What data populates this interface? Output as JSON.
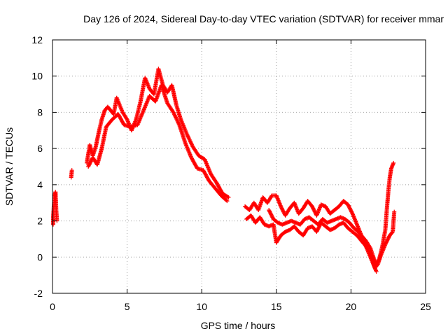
{
  "chart_data": {
    "type": "scatter",
    "title": "Day 126 of 2024, Sidereal Day-to-day VTEC variation (SDTVAR) for receiver mmar",
    "xlabel": "GPS time / hours",
    "ylabel": "SDTVAR / TECUs",
    "xlim": [
      0,
      25
    ],
    "ylim": [
      -2,
      12
    ],
    "xticks": [
      0,
      5,
      10,
      15,
      20,
      25
    ],
    "yticks": [
      -2,
      0,
      2,
      4,
      6,
      8,
      10,
      12
    ],
    "grid": true,
    "marker": "+",
    "colors": {
      "series": "#ff0000",
      "grid": "#a0a0a0",
      "axis": "#000000"
    },
    "series": [
      {
        "name": "SDTVAR",
        "segments": [
          [
            [
              0.0,
              1.8
            ],
            [
              0.05,
              2.3
            ],
            [
              0.1,
              2.9
            ],
            [
              0.15,
              3.4
            ],
            [
              0.2,
              3.6
            ],
            [
              0.25,
              2.6
            ],
            [
              0.3,
              2.0
            ]
          ],
          [
            [
              1.25,
              4.4
            ],
            [
              1.3,
              4.8
            ]
          ],
          [
            [
              2.3,
              5.2
            ],
            [
              2.5,
              6.2
            ],
            [
              2.7,
              5.6
            ],
            [
              2.9,
              6.1
            ],
            [
              3.1,
              6.9
            ],
            [
              3.3,
              7.6
            ],
            [
              3.5,
              8.1
            ],
            [
              3.7,
              8.3
            ],
            [
              3.9,
              8.1
            ],
            [
              4.1,
              7.9
            ],
            [
              4.3,
              8.8
            ],
            [
              4.5,
              8.4
            ],
            [
              4.7,
              8.0
            ],
            [
              5.0,
              7.6
            ],
            [
              5.3,
              7.0
            ],
            [
              5.6,
              7.6
            ],
            [
              5.9,
              8.6
            ],
            [
              6.2,
              9.9
            ],
            [
              6.5,
              9.3
            ],
            [
              6.8,
              9.0
            ],
            [
              7.1,
              10.4
            ],
            [
              7.4,
              9.5
            ],
            [
              7.7,
              9.1
            ],
            [
              8.0,
              9.5
            ],
            [
              8.3,
              8.4
            ],
            [
              8.6,
              7.6
            ],
            [
              9.0,
              6.8
            ],
            [
              9.4,
              6.1
            ],
            [
              9.8,
              5.6
            ],
            [
              10.2,
              5.4
            ],
            [
              10.6,
              4.6
            ],
            [
              11.0,
              4.1
            ],
            [
              11.4,
              3.5
            ],
            [
              11.8,
              3.3
            ]
          ],
          [
            [
              2.4,
              5.0
            ],
            [
              2.7,
              5.5
            ],
            [
              3.0,
              5.1
            ],
            [
              3.3,
              6.0
            ],
            [
              3.6,
              7.2
            ],
            [
              4.0,
              7.6
            ],
            [
              4.4,
              7.9
            ],
            [
              4.8,
              7.3
            ],
            [
              5.2,
              7.2
            ],
            [
              5.7,
              7.3
            ],
            [
              6.1,
              8.1
            ],
            [
              6.5,
              8.9
            ],
            [
              6.9,
              8.6
            ],
            [
              7.3,
              9.5
            ],
            [
              7.7,
              8.5
            ],
            [
              8.1,
              8.0
            ],
            [
              8.5,
              7.3
            ],
            [
              8.9,
              6.3
            ],
            [
              9.3,
              5.5
            ],
            [
              9.7,
              4.9
            ],
            [
              10.1,
              4.8
            ],
            [
              10.5,
              4.2
            ],
            [
              10.9,
              3.8
            ],
            [
              11.3,
              3.4
            ],
            [
              11.7,
              3.1
            ]
          ],
          [
            [
              12.9,
              2.8
            ],
            [
              13.2,
              2.6
            ],
            [
              13.5,
              3.0
            ],
            [
              13.8,
              2.6
            ],
            [
              14.1,
              3.3
            ],
            [
              14.4,
              3.0
            ],
            [
              14.7,
              3.4
            ],
            [
              15.0,
              3.4
            ],
            [
              15.3,
              2.8
            ],
            [
              15.6,
              2.3
            ],
            [
              15.9,
              2.7
            ],
            [
              16.2,
              3.0
            ],
            [
              16.5,
              2.4
            ],
            [
              16.8,
              2.7
            ],
            [
              17.1,
              3.1
            ],
            [
              17.4,
              2.8
            ],
            [
              17.7,
              2.3
            ],
            [
              18.0,
              2.9
            ],
            [
              18.3,
              2.8
            ],
            [
              18.6,
              2.4
            ],
            [
              18.9,
              2.6
            ],
            [
              19.2,
              2.8
            ],
            [
              19.5,
              3.1
            ],
            [
              19.8,
              2.9
            ],
            [
              20.1,
              2.4
            ],
            [
              20.4,
              1.8
            ],
            [
              20.7,
              1.2
            ],
            [
              21.0,
              0.9
            ],
            [
              21.3,
              0.5
            ],
            [
              21.5,
              0.0
            ],
            [
              21.7,
              -0.4
            ],
            [
              21.9,
              -0.1
            ],
            [
              22.1,
              0.6
            ],
            [
              22.3,
              1.5
            ],
            [
              22.4,
              2.6
            ],
            [
              22.5,
              3.6
            ],
            [
              22.6,
              4.4
            ],
            [
              22.7,
              4.9
            ],
            [
              22.85,
              5.2
            ]
          ],
          [
            [
              13.0,
              2.1
            ],
            [
              13.3,
              2.3
            ],
            [
              13.6,
              1.9
            ],
            [
              13.9,
              2.2
            ],
            [
              14.2,
              1.8
            ],
            [
              14.5,
              1.7
            ],
            [
              14.8,
              1.8
            ],
            [
              15.0,
              0.8
            ],
            [
              15.3,
              1.2
            ],
            [
              15.6,
              1.4
            ],
            [
              15.9,
              1.5
            ],
            [
              16.2,
              1.7
            ],
            [
              16.5,
              1.4
            ],
            [
              16.8,
              1.2
            ],
            [
              17.1,
              1.6
            ],
            [
              17.4,
              1.7
            ],
            [
              17.7,
              1.4
            ],
            [
              18.0,
              1.9
            ],
            [
              18.3,
              1.7
            ],
            [
              18.6,
              1.5
            ],
            [
              18.9,
              1.6
            ],
            [
              19.2,
              1.8
            ],
            [
              19.5,
              1.9
            ],
            [
              19.8,
              1.6
            ],
            [
              20.1,
              1.4
            ],
            [
              20.4,
              1.2
            ],
            [
              20.7,
              0.9
            ],
            [
              21.0,
              0.6
            ],
            [
              21.3,
              0.2
            ],
            [
              21.6,
              -0.6
            ],
            [
              21.8,
              -0.4
            ],
            [
              22.0,
              0.1
            ],
            [
              22.3,
              0.7
            ],
            [
              22.6,
              1.2
            ],
            [
              22.8,
              1.4
            ],
            [
              22.9,
              2.5
            ]
          ],
          [
            [
              14.5,
              2.6
            ],
            [
              14.8,
              2.1
            ],
            [
              15.1,
              1.9
            ],
            [
              15.4,
              1.8
            ],
            [
              15.7,
              1.9
            ],
            [
              16.0,
              2.0
            ],
            [
              16.3,
              1.9
            ],
            [
              16.6,
              1.8
            ],
            [
              16.9,
              2.1
            ],
            [
              17.2,
              2.2
            ],
            [
              17.5,
              2.0
            ],
            [
              17.8,
              1.8
            ],
            [
              18.1,
              2.1
            ],
            [
              18.4,
              1.9
            ],
            [
              18.7,
              2.0
            ],
            [
              19.0,
              2.1
            ],
            [
              19.3,
              2.2
            ],
            [
              19.6,
              2.1
            ],
            [
              19.9,
              1.9
            ],
            [
              20.2,
              1.6
            ],
            [
              20.5,
              1.4
            ],
            [
              20.8,
              1.0
            ],
            [
              21.1,
              0.4
            ],
            [
              21.4,
              -0.2
            ],
            [
              21.7,
              -0.8
            ]
          ]
        ]
      }
    ]
  }
}
